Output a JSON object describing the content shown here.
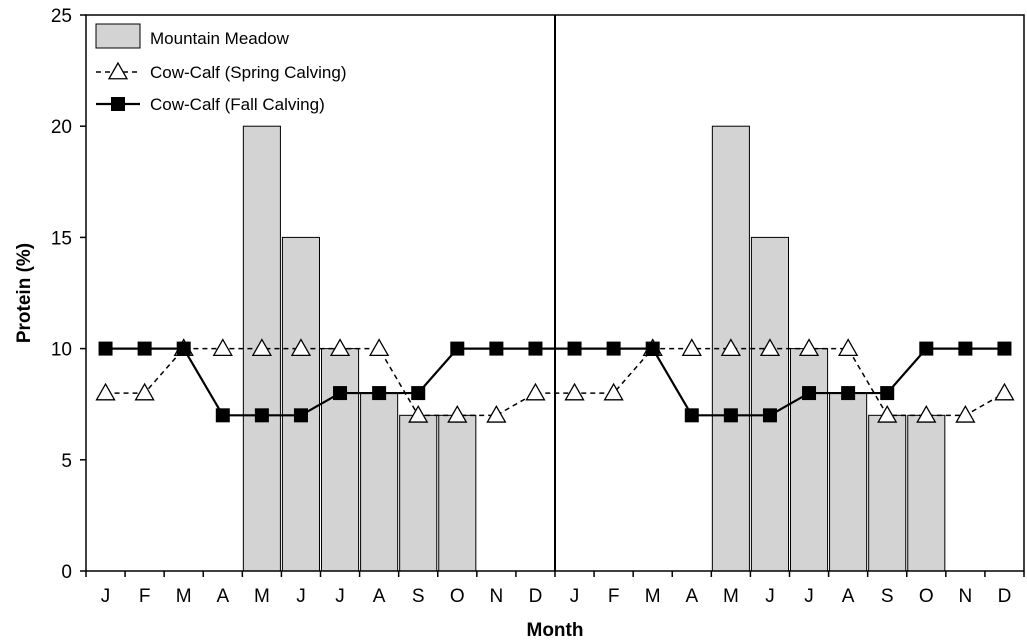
{
  "chart_data": {
    "type": "bar+line",
    "title": "",
    "xlabel": "Month",
    "ylabel": "Protein (%)",
    "ylim": [
      0,
      25
    ],
    "yticks": [
      0,
      5,
      10,
      15,
      20,
      25
    ],
    "categories": [
      "J",
      "F",
      "M",
      "A",
      "M",
      "J",
      "J",
      "A",
      "S",
      "O",
      "N",
      "D",
      "J",
      "F",
      "M",
      "A",
      "M",
      "J",
      "J",
      "A",
      "S",
      "O",
      "N",
      "D"
    ],
    "divider_after_index": 11,
    "legend_position": "top-left",
    "series": [
      {
        "name": "Mountain Meadow",
        "kind": "bar",
        "color": "#d3d3d3",
        "values": [
          null,
          null,
          null,
          null,
          20,
          15,
          10,
          8,
          7,
          7,
          null,
          null,
          null,
          null,
          null,
          null,
          20,
          15,
          10,
          8,
          7,
          7,
          null,
          null
        ]
      },
      {
        "name": "Cow-Calf (Spring Calving)",
        "kind": "line",
        "style": "dashed",
        "marker": "open-triangle",
        "values": [
          8,
          8,
          10,
          10,
          10,
          10,
          10,
          10,
          7,
          7,
          7,
          8,
          8,
          8,
          10,
          10,
          10,
          10,
          10,
          10,
          7,
          7,
          7,
          8
        ]
      },
      {
        "name": "Cow-Calf (Fall Calving)",
        "kind": "line",
        "style": "solid",
        "marker": "filled-square",
        "values": [
          10,
          10,
          10,
          7,
          7,
          7,
          8,
          8,
          8,
          10,
          10,
          10,
          10,
          10,
          10,
          7,
          7,
          7,
          8,
          8,
          8,
          10,
          10,
          10
        ]
      }
    ]
  }
}
